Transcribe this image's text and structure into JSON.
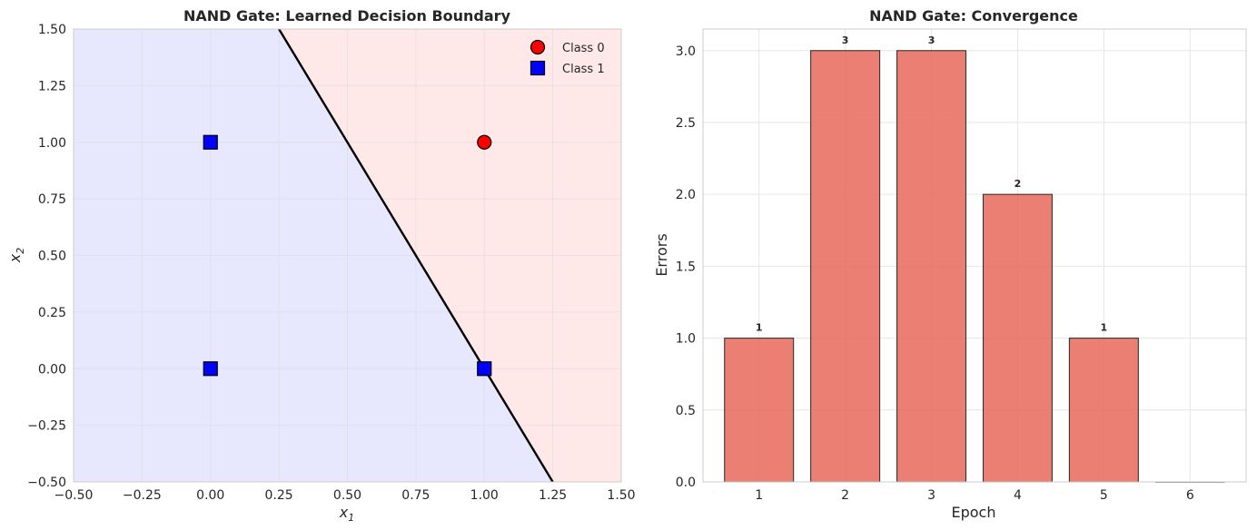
{
  "chart_data": [
    {
      "type": "scatter",
      "title": "NAND Gate: Learned Decision Boundary",
      "xlabel_base": "x",
      "xlabel_sub": "1",
      "ylabel_base": "x",
      "ylabel_sub": "2",
      "xlim": [
        -0.5,
        1.5
      ],
      "ylim": [
        -0.5,
        1.5
      ],
      "xticks": [
        -0.5,
        -0.25,
        0,
        0.25,
        0.5,
        0.75,
        1,
        1.25,
        1.5
      ],
      "xtick_labels": [
        "−0.50",
        "−0.25",
        "0.00",
        "0.25",
        "0.50",
        "0.75",
        "1.00",
        "1.25",
        "1.50"
      ],
      "yticks": [
        -0.5,
        -0.25,
        0,
        0.25,
        0.5,
        0.75,
        1,
        1.25,
        1.5
      ],
      "ytick_labels": [
        "−0.50",
        "−0.25",
        "0.00",
        "0.25",
        "0.50",
        "0.75",
        "1.00",
        "1.25",
        "1.50"
      ],
      "grid": true,
      "legend_position": "top-right",
      "region_colors": {
        "class1": "#e7e7fe",
        "class0": "#fee8e8"
      },
      "boundary": {
        "x": [
          0.25,
          1.25
        ],
        "y": [
          1.5,
          -0.5
        ],
        "color": "#000000"
      },
      "series": [
        {
          "name": "Class 0",
          "marker": "circle",
          "color": "#ff0000",
          "points": [
            [
              1,
              1
            ]
          ]
        },
        {
          "name": "Class 1",
          "marker": "square",
          "color": "#0000ff",
          "points": [
            [
              0,
              0
            ],
            [
              0,
              1
            ],
            [
              1,
              0
            ]
          ]
        }
      ]
    },
    {
      "type": "bar",
      "title": "NAND Gate: Convergence",
      "xlabel": "Epoch",
      "ylabel": "Errors",
      "categories": [
        "1",
        "2",
        "3",
        "4",
        "5",
        "6"
      ],
      "values": [
        1,
        3,
        3,
        2,
        1,
        0
      ],
      "bar_labels": [
        "1",
        "3",
        "3",
        "2",
        "1",
        ""
      ],
      "ylim": [
        0,
        3.15
      ],
      "yticks": [
        0,
        0.5,
        1,
        1.5,
        2,
        2.5,
        3
      ],
      "ytick_labels": [
        "0.0",
        "0.5",
        "1.0",
        "1.5",
        "2.0",
        "2.5",
        "3.0"
      ],
      "grid": true,
      "bar_color": "#e8695a"
    }
  ]
}
